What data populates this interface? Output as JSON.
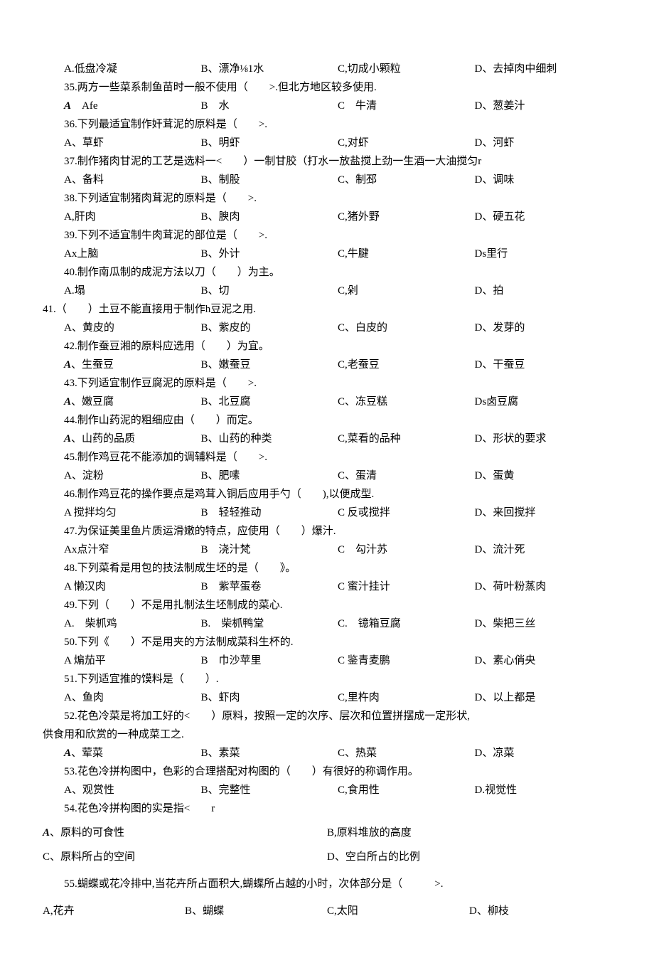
{
  "rows": [
    {
      "type": "opts",
      "cells": [
        "A.低盘冷凝",
        "B、漂净⅛1水",
        "C,切成小颗粒",
        "D、去掉肉中细刺"
      ]
    },
    {
      "type": "q",
      "text": "35.两方一些菜系制鱼苗时一般不使用（　　>.但北方地区较多使用."
    },
    {
      "type": "opts",
      "cells": [
        "A　Afe",
        "B　水",
        "C　牛清",
        "D、葱姜汁"
      ],
      "italicA": true
    },
    {
      "type": "q",
      "text": "36.下列最适宜制作奸茸泥的原料是（　　>."
    },
    {
      "type": "opts",
      "cells": [
        "A、草虾",
        "B、明虾",
        "C,对虾",
        "D、河虾"
      ]
    },
    {
      "type": "q",
      "text": "37.制作猪肉甘泥的工艺是选料一<　　）一制甘胶（打水一放盐搅上劲一生酒一大油搅匀r"
    },
    {
      "type": "opts",
      "cells": [
        "A、备料",
        "B、制股",
        "C、制邳",
        "D、调味"
      ]
    },
    {
      "type": "q",
      "text": "38.下列适宜制猪肉茸泥的原料是（　　>."
    },
    {
      "type": "opts",
      "cells": [
        "A,肝肉",
        "B、腴肉",
        "C,猪外野",
        "D、硬五花"
      ]
    },
    {
      "type": "q",
      "text": "39.下列不适宜制牛肉茸泥的部位是（　　>."
    },
    {
      "type": "opts",
      "cells": [
        "Ax上脑",
        "B、外计",
        "C,牛腱",
        "Ds里行"
      ]
    },
    {
      "type": "q",
      "text": "40.制作南瓜制的成泥方法以刀（　　）为主。"
    },
    {
      "type": "opts",
      "cells": [
        "A.塌",
        "B、切",
        "C,剁",
        "D、拍"
      ]
    },
    {
      "type": "q-noindent",
      "text": "41.（　　）土豆不能直接用于制作h豆泥之用."
    },
    {
      "type": "opts",
      "cells": [
        "A、黄皮的",
        "B、紫皮的",
        "C、白皮的",
        "D、发芽的"
      ]
    },
    {
      "type": "q",
      "text": "42.制作蚕豆湘的原料应选用（　　）为宜。"
    },
    {
      "type": "opts",
      "cells": [
        "A、生蚕豆",
        "B、嫩蚕豆",
        "C,老蚕豆",
        "D、干蚕豆"
      ],
      "italicA": true
    },
    {
      "type": "q",
      "text": "43.下列适宜制作豆腐泥的原料是（　　>."
    },
    {
      "type": "opts",
      "cells": [
        "A、嫩豆腐",
        "B、北豆腐",
        "C、冻豆糕",
        "Ds卤豆腐"
      ],
      "italicA": true
    },
    {
      "type": "q",
      "text": "44.制作山药泥的粗细应由（　　）而定。"
    },
    {
      "type": "opts",
      "cells": [
        "A、山药的品质",
        "B、山药的种类",
        "C,菜看的品种",
        "D、形状的要求"
      ],
      "italicA": true
    },
    {
      "type": "q",
      "text": "45.制作鸡豆花不能添加的调辅料是（　　>."
    },
    {
      "type": "opts",
      "cells": [
        "A、淀粉",
        "B、肥嗉",
        "C、蛋清",
        "D、蛋黄"
      ]
    },
    {
      "type": "q",
      "text": "46.制作鸡豆花的操作要点是鸡茸入铜后应用手勺（　　),以便成型."
    },
    {
      "type": "opts",
      "cells": [
        "A 搅拌均匀",
        "B　轻轻推动",
        "C 反戓搅拌",
        "D、来回搅拌"
      ]
    },
    {
      "type": "q",
      "text": "47.为保证美里鱼片质运滑嫩的特点，应使用（　　）爆汁."
    },
    {
      "type": "opts",
      "cells": [
        "Ax点汁窄",
        "B　浇汁梵",
        "C　勾汁苏",
        "D、流汁死"
      ]
    },
    {
      "type": "q",
      "text": "48.下列菜肴是用包的技法制成生坯的是（　　》。"
    },
    {
      "type": "opts",
      "cells": [
        "A 懒汉肉",
        "B　紫苹蛋卷",
        "C 蜜汁挂计",
        "D、荷叶粉蒸肉"
      ]
    },
    {
      "type": "q",
      "text": "49.下列（　　）不是用扎制法生坯制成的菜心."
    },
    {
      "type": "opts",
      "cells": [
        "A.　柴枛鸡",
        "B.　柴枛鸭堂",
        "C.　镱箱豆腐",
        "D、柴把三丝"
      ]
    },
    {
      "type": "q",
      "text": "50.下列《　　）不是用夹的方法制成菜科生杯的."
    },
    {
      "type": "opts",
      "cells": [
        "A 煸茄平",
        "B　巾沙苹里",
        "C 鉴青麦鹏",
        "D、素心俏央"
      ]
    },
    {
      "type": "q",
      "text": "51.下列适宜推的馍料是（　　）."
    },
    {
      "type": "opts",
      "cells": [
        "A、鱼肉",
        "B、虾肉",
        "C,里杵肉",
        "D、以上都是"
      ]
    },
    {
      "type": "q",
      "text": "52.花色冷菜是将加工好的<　　）原料，按照一定的次序、层次和位置拼摆成一定形状,"
    },
    {
      "type": "q-noindent",
      "text": "供食用和欣赏的一种成菜工之."
    },
    {
      "type": "opts",
      "cells": [
        "A、荤菜",
        "B、素菜",
        "C、热菜",
        "D、凉菜"
      ],
      "italicA": true
    },
    {
      "type": "q",
      "text": "53.花色冷拼构图中，色彩的合理搭配对构图的（　　）有很好的称调作用。"
    },
    {
      "type": "opts",
      "cells": [
        "A、观赏性",
        "B、完整性",
        "C,食用性",
        "D.视觉性"
      ]
    },
    {
      "type": "q",
      "text": "54.花色冷拼构图的实是指<　　r"
    },
    {
      "type": "two",
      "cells": [
        "A、原料的可食性",
        "B,原料堆放的高度"
      ],
      "italicA": true
    },
    {
      "type": "two",
      "cells": [
        "C、原料所占的空间",
        "D、空白所占的比例"
      ]
    },
    {
      "type": "q",
      "text": "55.蝴蝶或花冷排中,当花卉所占面积大,蝴蝶所占越的小时，次体部分是（　　　>.",
      "spaced": true
    },
    {
      "type": "opts",
      "cells": [
        "A,花卉",
        "B、蝴蝶",
        "C,太阳",
        "D、柳枝"
      ],
      "noindent": true,
      "spaced": true
    }
  ]
}
